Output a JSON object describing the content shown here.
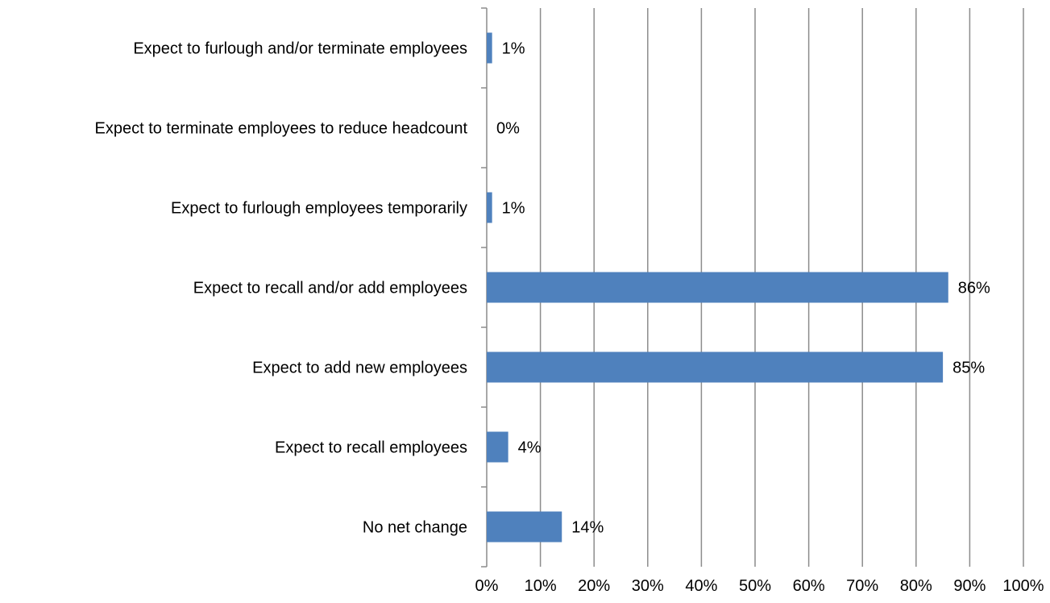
{
  "chart_data": {
    "type": "bar",
    "orientation": "horizontal",
    "categories": [
      "Expect to furlough and/or terminate employees",
      "Expect to terminate employees to reduce headcount",
      "Expect to furlough employees temporarily",
      "Expect to recall and/or add employees",
      "Expect to add new employees",
      "Expect to recall employees",
      "No net change"
    ],
    "values": [
      1,
      0,
      1,
      86,
      85,
      4,
      14
    ],
    "value_labels": [
      "1%",
      "0%",
      "1%",
      "86%",
      "85%",
      "4%",
      "14%"
    ],
    "xlim": [
      0,
      100
    ],
    "x_ticks": [
      0,
      10,
      20,
      30,
      40,
      50,
      60,
      70,
      80,
      90,
      100
    ],
    "x_tick_labels": [
      "0%",
      "10%",
      "20%",
      "30%",
      "40%",
      "50%",
      "60%",
      "70%",
      "80%",
      "90%",
      "100%"
    ],
    "grid": "vertical",
    "legend": "none",
    "bar_color": "#4f81bd",
    "grid_color": "#8c8c8c"
  }
}
